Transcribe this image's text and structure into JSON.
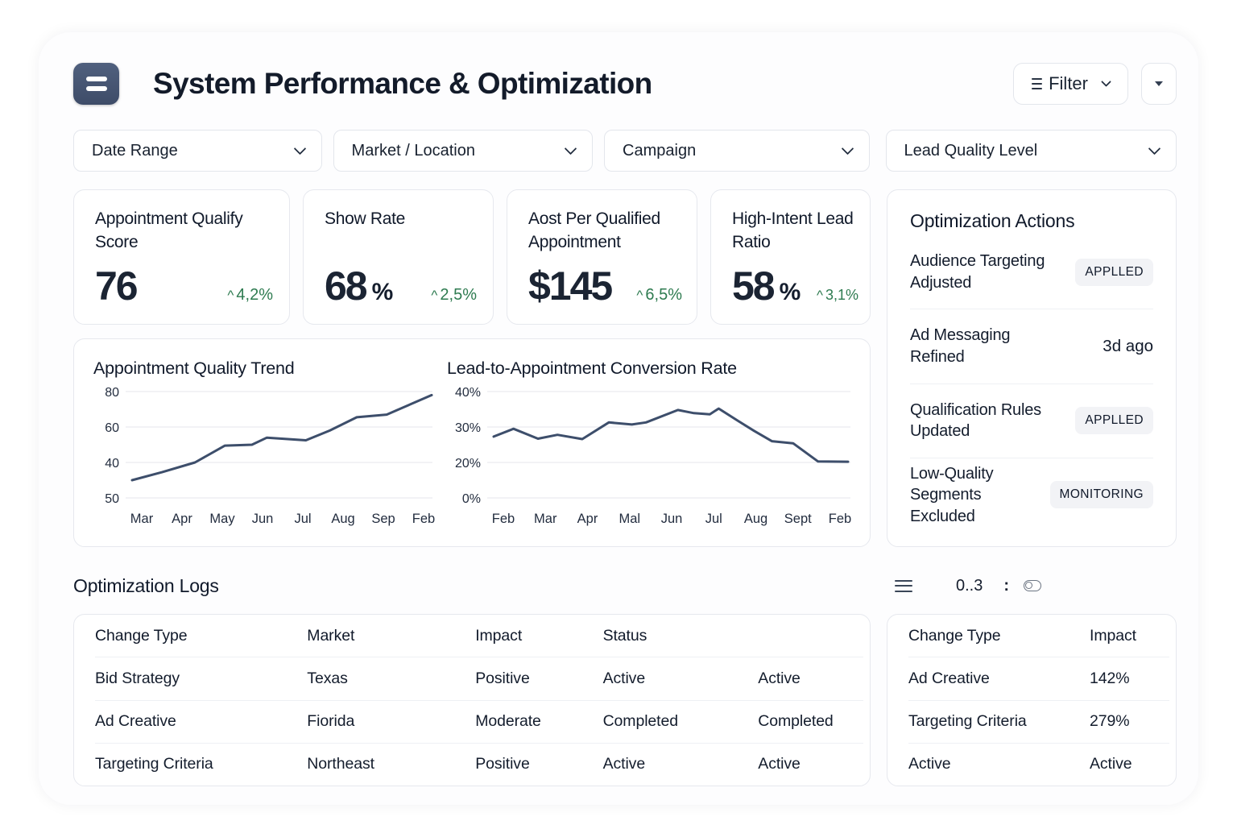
{
  "header": {
    "title": "System Performance & Optimization",
    "filter_label": "Filter"
  },
  "icons": {
    "app_icon": "menu-lines",
    "filter_icon": "three-lines",
    "more_icon": "caret-down-triangle",
    "dropdown_icon": "chevron-down",
    "logs_menu_icon": "three-lines"
  },
  "filters": [
    {
      "label": "Date Range"
    },
    {
      "label": "Market / Location"
    },
    {
      "label": "Campaign"
    },
    {
      "label": "Lead Quality Level"
    }
  ],
  "kpis": [
    {
      "title": "Appointment Qualify Score",
      "value": "76",
      "unit": "",
      "trend_icon": "^",
      "delta": "4,2%"
    },
    {
      "title": "Show Rate",
      "value": "68",
      "unit": "%",
      "trend_icon": "^",
      "delta": "2,5%"
    },
    {
      "title": "Aost Per Qualified Appointment",
      "value": "$145",
      "unit": "",
      "trend_icon": "^",
      "delta": "6,5%"
    },
    {
      "title": "High-Intent Lead Ratio",
      "value": "58",
      "unit": "%",
      "trend_icon": "^",
      "delta": "3,1%"
    }
  ],
  "optimization_actions": {
    "title": "Optimization Actions",
    "items": [
      {
        "label": "Audience Targeting Adjusted",
        "badge": "APPLLED",
        "style": "pill"
      },
      {
        "label": "Ad Messaging Refined",
        "badge": "3d ago",
        "style": "text"
      },
      {
        "label": "Qualification Rules Updated",
        "badge": "APPLLED",
        "style": "pill"
      },
      {
        "label": "Low-Quality Segments Excluded",
        "badge": "MONITORING",
        "style": "pill"
      }
    ]
  },
  "chart_data": [
    {
      "type": "line",
      "title": "Appointment Quality Trend",
      "categories": [
        "Mar",
        "Apr",
        "May",
        "Jun",
        "Jul",
        "Aug",
        "Sep",
        "Feb"
      ],
      "values": [
        30,
        40,
        50,
        54,
        52,
        65,
        67,
        78
      ],
      "y_ticks": [
        "80",
        "60",
        "40",
        "50"
      ],
      "y_scale": {
        "top": 80,
        "per_tick": 20
      },
      "ylim": [
        20,
        80
      ],
      "grid": true,
      "legend": "none",
      "line_color": "#3d4e6b",
      "line_points": [
        [
          0,
          30
        ],
        [
          0.1,
          34.5
        ],
        [
          0.21,
          40
        ],
        [
          0.31,
          49.5
        ],
        [
          0.4,
          50
        ],
        [
          0.45,
          54
        ],
        [
          0.58,
          52.5
        ],
        [
          0.66,
          58
        ],
        [
          0.75,
          65.5
        ],
        [
          0.85,
          67
        ],
        [
          1,
          78
        ]
      ]
    },
    {
      "type": "line",
      "title": "Lead-to-Appointment Conversion Rate",
      "categories": [
        "Feb",
        "Mar",
        "Apr",
        "Mal",
        "Jun",
        "Jul",
        "Aug",
        "Sept",
        "Feb"
      ],
      "values": [
        27,
        27,
        27,
        31,
        33,
        34,
        35,
        26,
        20
      ],
      "y_ticks": [
        "40%",
        "30%",
        "20%",
        "0%"
      ],
      "y_scale": {
        "top": 40,
        "per_tick": 10
      },
      "ylim": [
        0,
        40
      ],
      "grid": true,
      "legend": "none",
      "line_color": "#3d4e6b",
      "line_points": [
        [
          0,
          27.3
        ],
        [
          0.056,
          29.5
        ],
        [
          0.125,
          26.7
        ],
        [
          0.18,
          27.8
        ],
        [
          0.25,
          26.6
        ],
        [
          0.325,
          31.3
        ],
        [
          0.39,
          30.7
        ],
        [
          0.43,
          31.3
        ],
        [
          0.52,
          34.8
        ],
        [
          0.565,
          33.9
        ],
        [
          0.61,
          33.6
        ],
        [
          0.635,
          35.2
        ],
        [
          0.69,
          31.7
        ],
        [
          0.735,
          28.9
        ],
        [
          0.785,
          26.0
        ],
        [
          0.845,
          25.4
        ],
        [
          0.915,
          20.3
        ],
        [
          1,
          20.2
        ]
      ]
    }
  ],
  "logs": {
    "title": "Optimization Logs",
    "counter": "0..3",
    "separator": ":",
    "table": {
      "headers": [
        "Change Type",
        "Market",
        "Impact",
        "Status",
        ""
      ],
      "rows": [
        [
          "Bid Strategy",
          "Texas",
          "Positive",
          "Active",
          "Active"
        ],
        [
          "Ad Creative",
          "Fiorida",
          "Moderate",
          "Completed",
          "Completed"
        ],
        [
          "Targeting Criteria",
          "Northeast",
          "Positive",
          "Active",
          "Active"
        ]
      ]
    },
    "side_table": {
      "headers": [
        "Change Type",
        "Impact"
      ],
      "rows": [
        [
          "Ad Creative",
          "142%"
        ],
        [
          "Targeting Criteria",
          "279%"
        ],
        [
          "Active",
          "Active"
        ]
      ]
    }
  },
  "colors": {
    "accent_dark": "#44526c",
    "positive_green": "#2e7b50",
    "line": "#3d4e6b",
    "border": "#e6e8ee",
    "badge_bg": "#f2f3f6",
    "text": "#141d2d",
    "page_bg": "#000000",
    "panel_bg": "#fdfdfe"
  }
}
